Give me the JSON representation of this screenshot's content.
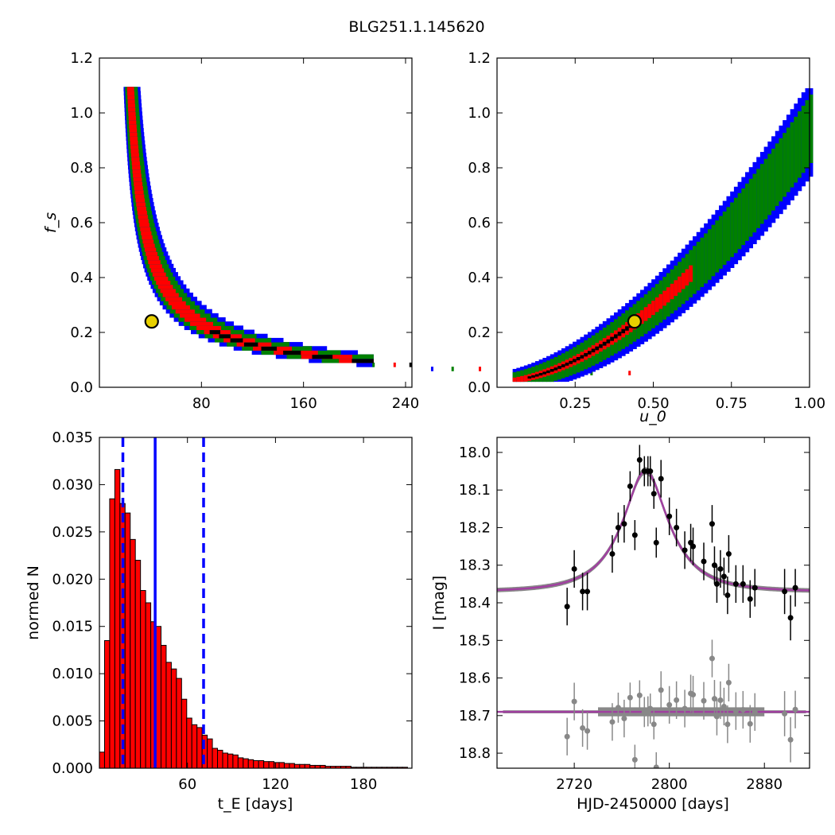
{
  "title": "BLG251.1.145620",
  "colors": {
    "sigma1": "#000000",
    "sigma2": "#ff0000",
    "sigma3": "#008000",
    "sigma4": "#0000ff",
    "best": "#e8d000",
    "hist": "#ff0000",
    "model": "#a040a0",
    "band": "#888888"
  },
  "chart_data": [
    {
      "id": "fs_vs_tE",
      "type": "heatmap",
      "ylabel": "f_s",
      "xlabel": "",
      "xlim": [
        0,
        245
      ],
      "ylim": [
        0,
        1.2
      ],
      "xticks": [
        "80",
        "160",
        "240"
      ],
      "xtick_values": [
        80,
        160,
        240
      ],
      "yticks": [
        "0.0",
        "0.2",
        "0.4",
        "0.6",
        "0.8",
        "1.0",
        "1.2"
      ],
      "ytick_values": [
        0,
        0.2,
        0.4,
        0.6,
        0.8,
        1.0,
        1.2
      ],
      "curve": {
        "k": 10.6,
        "a": 0.4
      },
      "best_fit": {
        "x": 41,
        "y": 0.24
      }
    },
    {
      "id": "fs_vs_u0",
      "type": "heatmap",
      "xlabel": "u_0",
      "ylabel": "",
      "xlim": [
        0,
        1.0
      ],
      "ylim": [
        0,
        1.2
      ],
      "xticks": [
        "0.25",
        "0.50",
        "0.75",
        "1.00"
      ],
      "xtick_values": [
        0.25,
        0.5,
        0.75,
        1.0
      ],
      "yticks": [
        "0.0",
        "0.2",
        "0.4",
        "0.6",
        "0.8",
        "1.0",
        "1.2"
      ],
      "ytick_values": [
        0,
        0.2,
        0.4,
        0.6,
        0.8,
        1.0,
        1.2
      ],
      "best_fit": {
        "x": 0.44,
        "y": 0.24
      }
    },
    {
      "id": "tE_hist",
      "type": "bar",
      "xlabel": "t_E [days]",
      "ylabel": "normed N",
      "xlim": [
        0,
        213
      ],
      "ylim": [
        0,
        0.035
      ],
      "xticks": [
        "60",
        "120",
        "180"
      ],
      "xtick_values": [
        60,
        120,
        180
      ],
      "yticks": [
        "0.000",
        "0.005",
        "0.010",
        "0.015",
        "0.020",
        "0.025",
        "0.030",
        "0.035"
      ],
      "ytick_values": [
        0,
        0.005,
        0.01,
        0.015,
        0.02,
        0.025,
        0.03,
        0.035
      ],
      "bin_start": 0,
      "bin_width": 3.5,
      "values": [
        0.0017,
        0.0135,
        0.0285,
        0.0316,
        0.028,
        0.027,
        0.0242,
        0.022,
        0.0188,
        0.0175,
        0.0155,
        0.015,
        0.013,
        0.0112,
        0.0105,
        0.0095,
        0.0073,
        0.0053,
        0.0046,
        0.0043,
        0.0035,
        0.0031,
        0.0021,
        0.0019,
        0.0016,
        0.0015,
        0.0014,
        0.0011,
        0.001,
        0.0009,
        0.0008,
        0.0008,
        0.0007,
        0.0007,
        0.0006,
        0.0006,
        0.0005,
        0.0005,
        0.0004,
        0.0004,
        0.0004,
        0.0003,
        0.0003,
        0.0003,
        0.0002,
        0.0002,
        0.0002,
        0.0002,
        0.0002,
        0.0001,
        0.0001,
        0.0001,
        0.0001,
        0.0001,
        0.0001,
        0.0001,
        0.0001,
        0.0001,
        0.0001,
        0.0001,
        0.0
      ],
      "median": 38,
      "bounds": [
        16,
        71
      ]
    },
    {
      "id": "light_curve",
      "type": "scatter",
      "xlabel": "HJD-2450000 [days]",
      "ylabel": "I [mag]",
      "xlim": [
        2655,
        2918
      ],
      "ylim": [
        18.84,
        17.96
      ],
      "xticks": [
        "2720",
        "2800",
        "2880"
      ],
      "xtick_values": [
        2720,
        2800,
        2880
      ],
      "yticks": [
        "18.0",
        "18.1",
        "18.2",
        "18.3",
        "18.4",
        "18.5",
        "18.6",
        "18.7",
        "18.8"
      ],
      "ytick_values": [
        18.0,
        18.1,
        18.2,
        18.3,
        18.4,
        18.5,
        18.6,
        18.7,
        18.8
      ],
      "model": {
        "t0": 2780,
        "tE": 41,
        "u0": 0.44,
        "fs": 0.24,
        "base": 18.37
      },
      "resid_offset": 18.69,
      "points": [
        [
          2714,
          18.41,
          0.05
        ],
        [
          2720,
          18.31,
          0.05
        ],
        [
          2727,
          18.37,
          0.05
        ],
        [
          2731,
          18.37,
          0.05
        ],
        [
          2752,
          18.27,
          0.05
        ],
        [
          2757,
          18.2,
          0.04
        ],
        [
          2762,
          18.19,
          0.05
        ],
        [
          2767,
          18.09,
          0.04
        ],
        [
          2771,
          18.22,
          0.04
        ],
        [
          2775,
          18.02,
          0.04
        ],
        [
          2779,
          18.05,
          0.04
        ],
        [
          2782,
          18.05,
          0.04
        ],
        [
          2784,
          18.05,
          0.04
        ],
        [
          2787,
          18.11,
          0.04
        ],
        [
          2789,
          18.24,
          0.04
        ],
        [
          2793,
          18.07,
          0.05
        ],
        [
          2800,
          18.17,
          0.05
        ],
        [
          2806,
          18.2,
          0.05
        ],
        [
          2813,
          18.26,
          0.05
        ],
        [
          2818,
          18.24,
          0.05
        ],
        [
          2820,
          18.25,
          0.05
        ],
        [
          2829,
          18.29,
          0.05
        ],
        [
          2836,
          18.19,
          0.05
        ],
        [
          2838,
          18.3,
          0.05
        ],
        [
          2840,
          18.35,
          0.05
        ],
        [
          2843,
          18.31,
          0.05
        ],
        [
          2846,
          18.33,
          0.05
        ],
        [
          2849,
          18.38,
          0.05
        ],
        [
          2850,
          18.27,
          0.05
        ],
        [
          2856,
          18.35,
          0.05
        ],
        [
          2862,
          18.35,
          0.05
        ],
        [
          2868,
          18.39,
          0.05
        ],
        [
          2872,
          18.36,
          0.05
        ],
        [
          2897,
          18.37,
          0.06
        ],
        [
          2902,
          18.44,
          0.06
        ],
        [
          2906,
          18.36,
          0.05
        ]
      ]
    }
  ]
}
